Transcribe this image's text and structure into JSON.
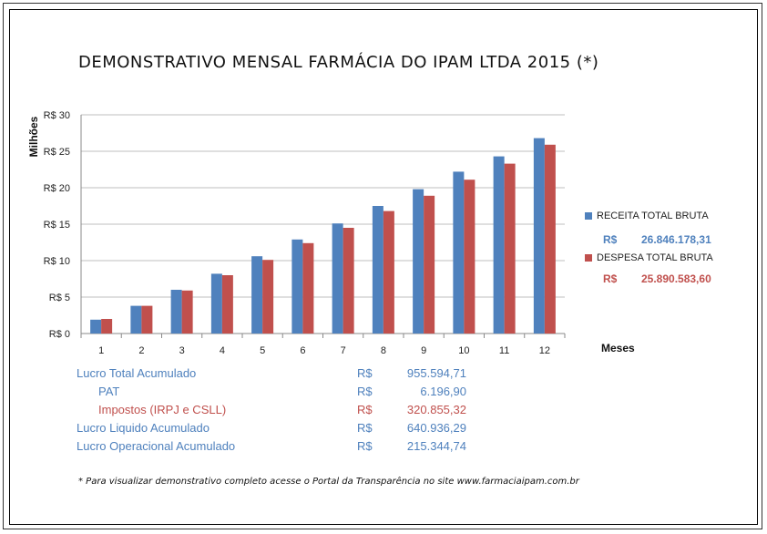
{
  "title": "DEMONSTRATIVO MENSAL FARMÁCIA DO IPAM  LTDA 2015 (*)",
  "colors": {
    "receita": "#4f81bd",
    "despesa": "#c0504d",
    "grid": "#bfbfbf",
    "blueText": "#4f81bd",
    "redText": "#c0504d"
  },
  "chart_data": {
    "type": "bar",
    "title": "DEMONSTRATIVO MENSAL FARMÁCIA DO IPAM  LTDA 2015 (*)",
    "xlabel": "Meses",
    "ylabel": "Milhões",
    "categories": [
      "1",
      "2",
      "3",
      "4",
      "5",
      "6",
      "7",
      "8",
      "9",
      "10",
      "11",
      "12"
    ],
    "ylim": [
      0,
      30
    ],
    "yticks": [
      0,
      5,
      10,
      15,
      20,
      25,
      30
    ],
    "ytick_labels": [
      "R$ 0",
      "R$ 5",
      "R$ 10",
      "R$ 15",
      "R$ 20",
      "R$ 25",
      "R$ 30"
    ],
    "grid": true,
    "legend_position": "right",
    "series": [
      {
        "name": "RECEITA  TOTAL BRUTA",
        "values": [
          1.9,
          3.8,
          6.0,
          8.2,
          10.6,
          12.9,
          15.1,
          17.5,
          19.8,
          22.2,
          24.3,
          26.8
        ]
      },
      {
        "name": "DESPESA  TOTAL  BRUTA",
        "values": [
          2.0,
          3.8,
          5.9,
          8.0,
          10.1,
          12.4,
          14.5,
          16.8,
          18.9,
          21.1,
          23.3,
          25.9
        ]
      }
    ]
  },
  "legend": {
    "receita_currency": "R$",
    "receita_value": "26.846.178,31",
    "despesa_currency": "R$",
    "despesa_value": "25.890.583,60"
  },
  "summary": [
    {
      "label": "Lucro Total Acumulado",
      "currency": "R$",
      "value": "955.594,71",
      "color": "blue",
      "indent": false
    },
    {
      "label": "PAT",
      "currency": "R$",
      "value": "6.196,90",
      "color": "blue",
      "indent": true
    },
    {
      "label": "Impostos (IRPJ e CSLL)",
      "currency": "R$",
      "value": "320.855,32",
      "color": "red",
      "indent": true
    },
    {
      "label": "Lucro Liquido Acumulado",
      "currency": "R$",
      "value": "640.936,29",
      "color": "blue",
      "indent": false
    },
    {
      "label": "Lucro Operacional Acumulado",
      "currency": "R$",
      "value": "215.344,74",
      "color": "blue",
      "indent": false
    }
  ],
  "footnote": "* Para visualizar demonstrativo completo acesse o Portal da Transparência no site www.farmaciaipam.com.br"
}
